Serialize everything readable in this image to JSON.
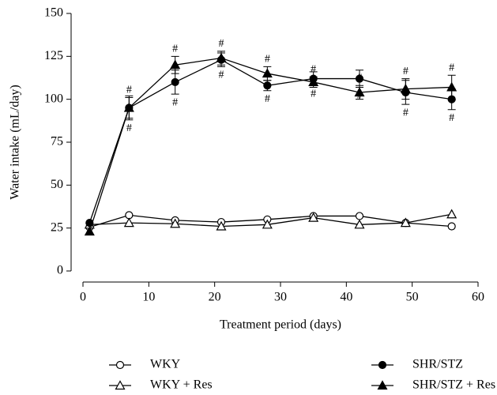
{
  "chart_data": {
    "type": "line",
    "x_label": "Treatment period (days)",
    "y_label": "Water intake (mL/day)",
    "x": [
      1,
      7,
      14,
      21,
      28,
      35,
      42,
      49,
      56
    ],
    "xlim": [
      0,
      60
    ],
    "xticks": [
      0,
      10,
      20,
      30,
      40,
      50,
      60
    ],
    "ylim": [
      0,
      150
    ],
    "yticks": [
      0,
      25,
      50,
      75,
      100,
      125,
      150
    ],
    "series": [
      {
        "name": "WKY",
        "color": "#000000",
        "marker": "circle",
        "filled": false,
        "values": [
          25.5,
          32.5,
          29.5,
          28.5,
          30,
          32,
          32,
          28,
          26
        ]
      },
      {
        "name": "WKY + Res",
        "color": "#000000",
        "marker": "triangle",
        "filled": false,
        "values": [
          27,
          28,
          27.5,
          26,
          27,
          31,
          27,
          28,
          33
        ]
      },
      {
        "name": "SHR/STZ",
        "color": "#000000",
        "marker": "circle",
        "filled": true,
        "values": [
          28,
          95,
          110,
          123,
          108,
          112,
          112,
          104,
          100
        ],
        "errors": [
          0,
          7,
          7,
          4,
          3,
          4,
          5,
          7,
          6
        ],
        "marks": [
          null,
          "#",
          "#",
          "#",
          "#",
          "#",
          "#",
          "#",
          "#"
        ]
      },
      {
        "name": "SHR/STZ + Res",
        "color": "#000000",
        "marker": "triangle",
        "filled": true,
        "values": [
          23,
          95,
          120,
          124,
          115,
          110,
          104,
          106,
          107
        ],
        "errors": [
          0,
          6,
          5,
          4,
          4,
          3,
          4,
          6,
          7
        ],
        "marks": [
          null,
          "#",
          "#",
          "#",
          "#",
          "#",
          "#",
          "#",
          "#"
        ]
      }
    ]
  }
}
